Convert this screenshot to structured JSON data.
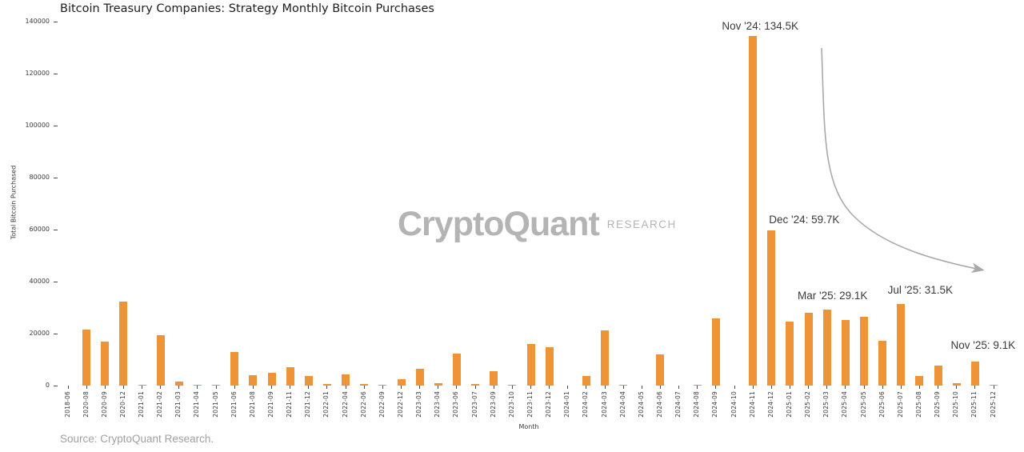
{
  "source_note": "Source: CryptoQuant Research.",
  "watermark": {
    "brand": "CryptoQuant",
    "suffix": "RESEARCH"
  },
  "colors": {
    "bar": "#EE9336",
    "axis_text": "#3a3a3a",
    "title_text": "#1c1c1c",
    "annotation_text": "#3a3a3a",
    "arrow": "#a9a9a9",
    "watermark": "#b4b4b4",
    "source_text": "#a0a0a0"
  },
  "chart_data": {
    "type": "bar",
    "title": "Bitcoin Treasury Companies: Strategy Monthly Bitcoin Purchases",
    "xlabel": "Month",
    "ylabel": "Total Bitcoin Purchased",
    "ylim": [
      0,
      140000
    ],
    "yticks": [
      0,
      20000,
      40000,
      60000,
      80000,
      100000,
      120000,
      140000
    ],
    "grid": false,
    "legend": null,
    "categories": [
      "2018-06",
      "2020-08",
      "2020-09",
      "2020-12",
      "2021-01",
      "2021-02",
      "2021-03",
      "2021-04",
      "2021-05",
      "2021-06",
      "2021-08",
      "2021-09",
      "2021-11",
      "2021-12",
      "2022-01",
      "2022-04",
      "2022-06",
      "2022-09",
      "2022-12",
      "2023-03",
      "2023-04",
      "2023-06",
      "2023-07",
      "2023-09",
      "2023-10",
      "2023-11",
      "2023-12",
      "2024-01",
      "2024-02",
      "2024-03",
      "2024-04",
      "2024-05",
      "2024-06",
      "2024-07",
      "2024-08",
      "2024-09",
      "2024-10",
      "2024-11",
      "2024-12",
      "2025-01",
      "2025-02",
      "2025-03",
      "2025-04",
      "2025-05",
      "2025-06",
      "2025-07",
      "2025-08",
      "2025-09",
      "2025-10",
      "2025-11",
      "2025-12"
    ],
    "values": [
      0,
      21450,
      16800,
      32220,
      310,
      19450,
      1400,
      250,
      270,
      13000,
      3900,
      5050,
      7000,
      3600,
      660,
      4170,
      480,
      300,
      2500,
      6460,
      1050,
      12330,
      470,
      5450,
      160,
      16130,
      14620,
      0,
      3700,
      21300,
      120,
      0,
      11930,
      0,
      300,
      25720,
      0,
      134480,
      59680,
      24700,
      27990,
      29080,
      25200,
      26600,
      17080,
      31470,
      3670,
      7710,
      900,
      9130,
      200
    ],
    "annotations": [
      {
        "text": "Nov '24: 134.5K",
        "month": "2024-11",
        "anchor_value": 135700,
        "dx": 9
      },
      {
        "text": "Dec '24: 59.7K",
        "month": "2024-12",
        "anchor_value": 61200,
        "dx": 41
      },
      {
        "text": "Mar '25: 29.1K",
        "month": "2025-03",
        "anchor_value": 32000,
        "dx": 7
      },
      {
        "text": "Jul '25: 31.5K",
        "month": "2025-07",
        "anchor_value": 34200,
        "dx": 24
      },
      {
        "text": "Nov '25: 9.1K",
        "month": "2025-11",
        "anchor_value": 12900,
        "dx": 10
      }
    ]
  }
}
